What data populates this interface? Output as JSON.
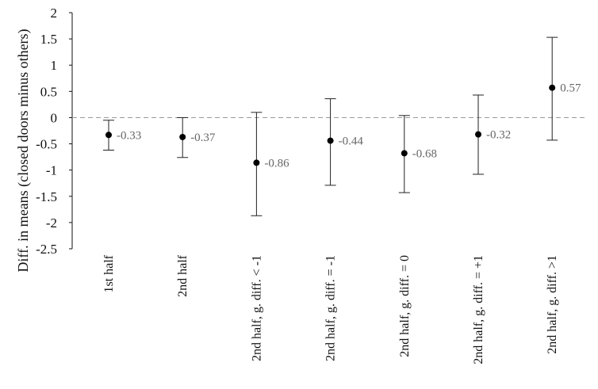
{
  "chart_data": {
    "type": "scatter",
    "title": "",
    "xlabel": "",
    "ylabel": "Diff. in means (closed doors minus others)",
    "ylim": [
      -2.5,
      2
    ],
    "yticks": [
      "2",
      "1.5",
      "1",
      "0.5",
      "0",
      "-0.5",
      "-1",
      "-1.5",
      "-2",
      "-2.5"
    ],
    "ytick_values": [
      2,
      1.5,
      1,
      0.5,
      0,
      -0.5,
      -1,
      -1.5,
      -2,
      -2.5
    ],
    "grid": false,
    "reference_line": 0,
    "categories": [
      "1st half",
      "2nd half",
      "2nd half, g. diff. < -1",
      "2nd half, g. diff. = -1",
      "2nd half, g. diff. = 0",
      "2nd half, g. diff. = +1",
      "2nd half, g. diff. >1"
    ],
    "values": [
      -0.33,
      -0.37,
      -0.86,
      -0.44,
      -0.68,
      -0.32,
      0.57
    ],
    "value_labels": [
      "-0.33",
      "-0.37",
      "-0.86",
      "-0.44",
      "-0.68",
      "-0.32",
      "0.57"
    ],
    "ci_lower": [
      -0.62,
      -0.76,
      -1.87,
      -1.29,
      -1.43,
      -1.08,
      -0.43
    ],
    "ci_upper": [
      -0.05,
      0.0,
      0.1,
      0.36,
      0.04,
      0.43,
      1.53
    ],
    "colors": {
      "point": "#000000",
      "errorbar": "#222222",
      "zero_line": "#999999",
      "data_label": "#666666",
      "axis": "#111111"
    }
  }
}
